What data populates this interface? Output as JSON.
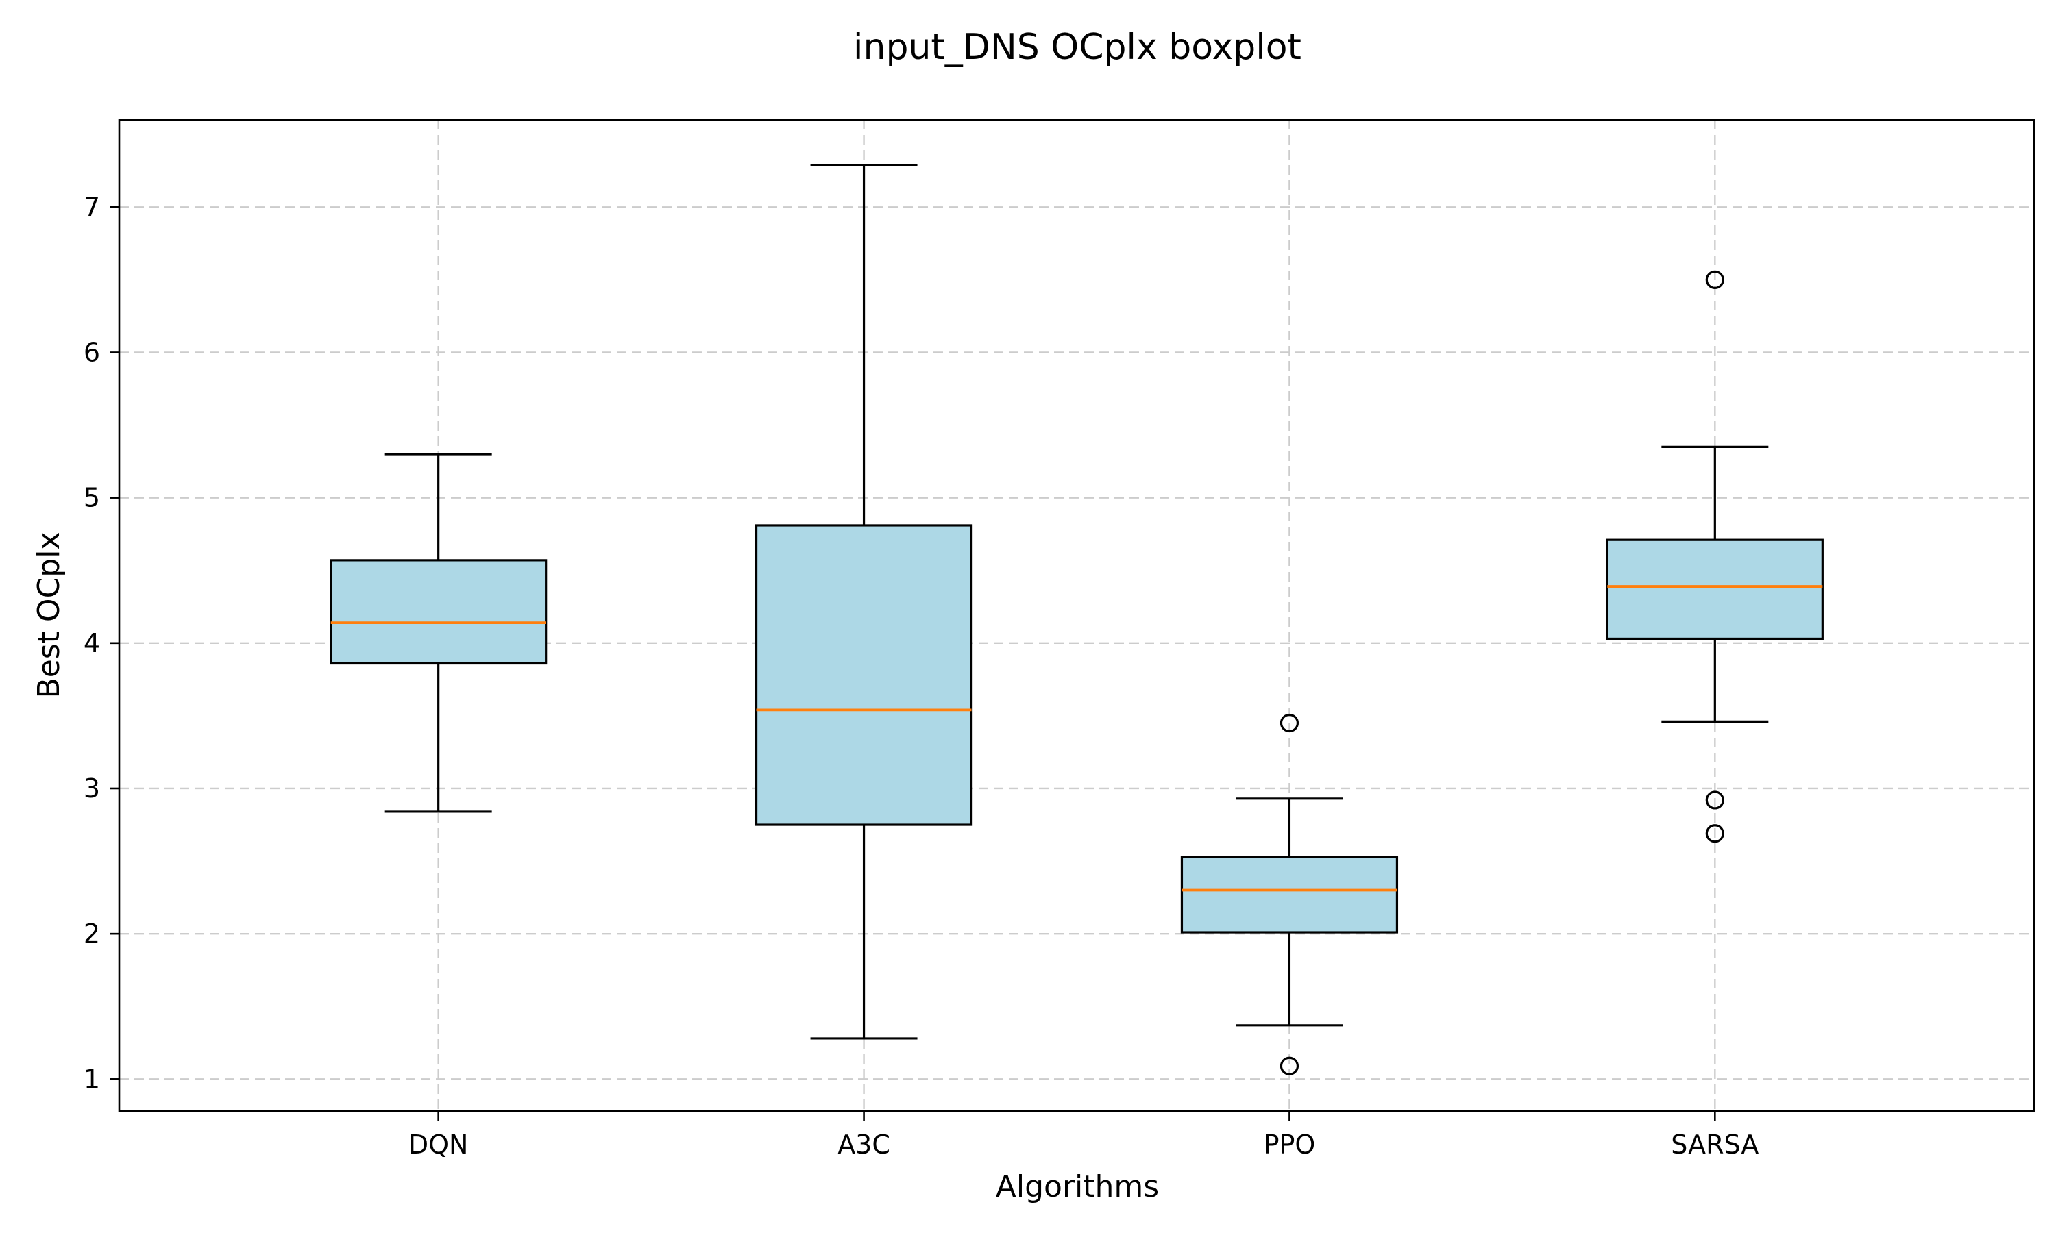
{
  "chart_data": {
    "type": "box",
    "title": "input_DNS OCplx boxplot",
    "xlabel": "Algorithms",
    "ylabel": "Best OCplx",
    "ylim": [
      0.78,
      7.6
    ],
    "yticks": [
      1,
      2,
      3,
      4,
      5,
      6,
      7
    ],
    "grid": true,
    "categories": [
      "DQN",
      "A3C",
      "PPO",
      "SARSA"
    ],
    "series": [
      {
        "category": "DQN",
        "whisker_low": 2.84,
        "q1": 3.86,
        "median": 4.14,
        "q3": 4.57,
        "whisker_high": 5.3,
        "outliers": []
      },
      {
        "category": "A3C",
        "whisker_low": 1.28,
        "q1": 2.75,
        "median": 3.54,
        "q3": 4.81,
        "whisker_high": 7.29,
        "outliers": []
      },
      {
        "category": "PPO",
        "whisker_low": 1.37,
        "q1": 2.01,
        "median": 2.3,
        "q3": 2.53,
        "whisker_high": 2.93,
        "outliers": [
          3.45,
          1.09
        ]
      },
      {
        "category": "SARSA",
        "whisker_low": 3.46,
        "q1": 4.03,
        "median": 4.39,
        "q3": 4.71,
        "whisker_high": 5.35,
        "outliers": [
          6.5,
          2.92,
          2.69
        ]
      }
    ],
    "colors": {
      "box_fill": "#add8e6",
      "median": "#ff7f0e",
      "outline": "#000000",
      "grid": "#cccccc"
    }
  }
}
